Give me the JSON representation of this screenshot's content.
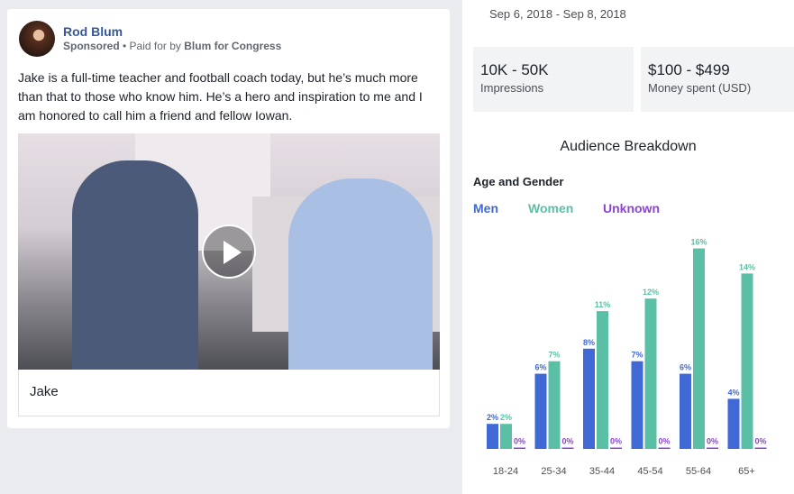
{
  "post": {
    "author": "Rod Blum",
    "sponsored": "Sponsored",
    "paid_prefix": " • Paid for by ",
    "payer": "Blum for Congress",
    "text": "Jake is a full-time teacher and football coach today, but he’s much more than that to those who know him. He’s a hero and inspiration to me and I am honored to call him a friend and fellow Iowan.",
    "video_caption": "Jake",
    "play_icon": "play-icon"
  },
  "stats": {
    "date_range": "Sep 6, 2018 - Sep 8, 2018",
    "impressions": "10K - 50K",
    "impressions_label": "Impressions",
    "spent": "$100 - $499",
    "spent_label": "Money spent (USD)"
  },
  "audience": {
    "title": "Audience Breakdown",
    "section": "Age and Gender"
  },
  "chart_data": {
    "type": "bar",
    "categories": [
      "18-24",
      "25-34",
      "35-44",
      "45-54",
      "55-64",
      "65+"
    ],
    "series": [
      {
        "name": "Men",
        "color": "#4069d6",
        "values": [
          2,
          6,
          8,
          7,
          6,
          4
        ]
      },
      {
        "name": "Women",
        "color": "#5bbfa6",
        "values": [
          2,
          7,
          11,
          12,
          16,
          14
        ]
      },
      {
        "name": "Unknown",
        "color": "#8c44d0",
        "values": [
          0,
          0,
          0,
          0,
          0,
          0
        ]
      }
    ],
    "unit": "%",
    "legend": "top-left"
  }
}
